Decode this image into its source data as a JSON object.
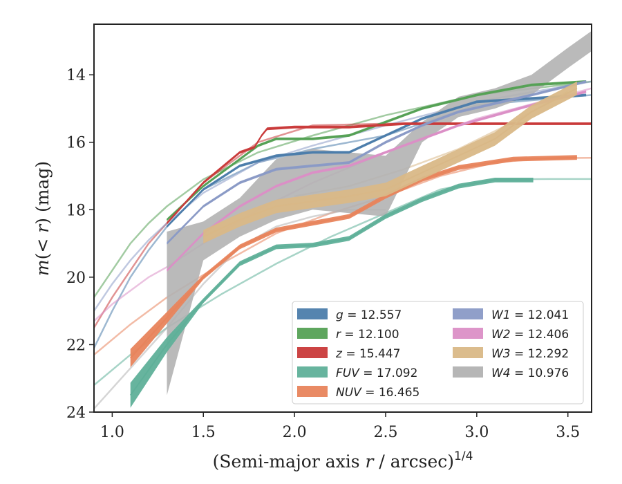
{
  "chart_data": {
    "type": "line",
    "xlabel": "(Semi-major axis r / arcsec)^{1/4}",
    "xlabel_parts": {
      "main": "(Semi-major axis ",
      "var": "r",
      "rest": " / arcsec)",
      "sup": "1/4"
    },
    "ylabel": "m(< r) (mag)",
    "ylabel_parts": {
      "var": "m",
      "mid": "(< ",
      "var2": "r",
      "rest": ") (mag)"
    },
    "xlim": [
      0.9,
      3.63
    ],
    "ylim": [
      24,
      12.5
    ],
    "y_inverted": true,
    "x_ticks": [
      1.0,
      1.5,
      2.0,
      2.5,
      3.0,
      3.5
    ],
    "x_tick_labels": [
      "1.0",
      "1.5",
      "2.0",
      "2.5",
      "3.0",
      "3.5"
    ],
    "y_ticks": [
      14,
      16,
      18,
      20,
      22,
      24
    ],
    "y_tick_labels": [
      "14",
      "16",
      "18",
      "20",
      "22",
      "24"
    ],
    "grid": false,
    "legend_position": "lower-right",
    "series": [
      {
        "name": "g",
        "value": "12.557",
        "color": "#4c7dab",
        "kind": "band",
        "x": [
          1.3,
          1.5,
          1.7,
          1.9,
          2.1,
          2.3,
          2.5,
          2.7,
          3.0,
          3.3,
          3.6
        ],
        "y": [
          18.5,
          17.4,
          16.7,
          16.4,
          16.3,
          16.3,
          15.8,
          15.3,
          14.8,
          14.7,
          14.6
        ],
        "ext_x": [
          0.9,
          1.0,
          1.1,
          1.2,
          1.3,
          1.5,
          1.8,
          2.1,
          2.5,
          3.0,
          3.63
        ],
        "ext_y": [
          22.1,
          21.0,
          20.0,
          19.2,
          18.5,
          17.4,
          16.6,
          16.2,
          15.8,
          14.9,
          14.6
        ]
      },
      {
        "name": "r",
        "value": "12.100",
        "color": "#55a155",
        "kind": "band",
        "x": [
          1.3,
          1.5,
          1.7,
          1.8,
          1.9,
          2.1,
          2.3,
          2.5,
          2.7,
          3.0,
          3.3,
          3.6
        ],
        "y": [
          18.3,
          17.3,
          16.5,
          16.1,
          15.9,
          15.9,
          15.8,
          15.4,
          15.0,
          14.6,
          14.3,
          14.2
        ],
        "ext_x": [
          0.9,
          1.0,
          1.1,
          1.2,
          1.3,
          1.5,
          1.8,
          2.1,
          2.5,
          3.0,
          3.63
        ],
        "ext_y": [
          20.6,
          19.8,
          19.0,
          18.4,
          17.9,
          17.1,
          16.3,
          15.8,
          15.2,
          14.6,
          14.2
        ]
      },
      {
        "name": "z",
        "value": "15.447",
        "color": "#c93a3a",
        "kind": "band",
        "x": [
          1.3,
          1.5,
          1.7,
          1.78,
          1.82,
          1.85,
          2.0,
          2.3,
          2.6,
          2.9,
          3.3,
          3.63
        ],
        "y": [
          18.4,
          17.2,
          16.3,
          16.15,
          15.8,
          15.6,
          15.55,
          15.55,
          15.45,
          15.45,
          15.45,
          15.45
        ],
        "ext_x": [
          0.9,
          1.0,
          1.1,
          1.2,
          1.3,
          1.5,
          1.8,
          2.1,
          2.5,
          3.0,
          3.63
        ],
        "ext_y": [
          21.5,
          20.6,
          19.8,
          19.0,
          18.4,
          17.2,
          16.0,
          15.5,
          15.45,
          15.45,
          15.45
        ]
      },
      {
        "name": "FUV",
        "value": "17.092",
        "color": "#5fb099",
        "kind": "band",
        "x": [
          1.1,
          1.3,
          1.5,
          1.7,
          1.9,
          2.1,
          2.3,
          2.5,
          2.7,
          2.9,
          3.1,
          3.31
        ],
        "y": [
          23.5,
          22.0,
          20.7,
          19.6,
          19.1,
          19.05,
          18.85,
          18.2,
          17.7,
          17.3,
          17.12,
          17.12
        ],
        "ext_x": [
          0.9,
          1.1,
          1.3,
          1.6,
          1.9,
          2.2,
          2.5,
          2.8,
          3.1,
          3.4,
          3.63
        ],
        "ext_y": [
          23.2,
          22.3,
          21.5,
          20.5,
          19.6,
          18.8,
          18.1,
          17.4,
          17.1,
          17.09,
          17.09
        ]
      },
      {
        "name": "NUV",
        "value": "16.465",
        "color": "#e8845c",
        "kind": "band",
        "x": [
          1.1,
          1.3,
          1.5,
          1.7,
          1.9,
          2.1,
          2.3,
          2.5,
          2.7,
          2.9,
          3.2,
          3.55
        ],
        "y": [
          22.4,
          21.2,
          20.0,
          19.1,
          18.6,
          18.4,
          18.2,
          17.6,
          17.1,
          16.75,
          16.5,
          16.45
        ],
        "ext_x": [
          0.9,
          1.1,
          1.3,
          1.6,
          1.9,
          2.2,
          2.5,
          2.8,
          3.1,
          3.4,
          3.63
        ],
        "ext_y": [
          22.3,
          21.4,
          20.6,
          19.6,
          18.7,
          18.1,
          17.6,
          17.0,
          16.6,
          16.47,
          16.46
        ]
      },
      {
        "name": "W1",
        "value": "12.041",
        "color": "#8a9ac6",
        "kind": "band",
        "x": [
          1.3,
          1.5,
          1.7,
          1.9,
          2.1,
          2.3,
          2.5,
          2.7,
          2.9,
          3.1,
          3.3,
          3.6
        ],
        "y": [
          19.0,
          17.9,
          17.2,
          16.8,
          16.7,
          16.6,
          16.0,
          15.5,
          15.1,
          14.85,
          14.6,
          14.2
        ],
        "ext_x": [
          0.9,
          1.0,
          1.1,
          1.2,
          1.3,
          1.5,
          1.8,
          2.1,
          2.5,
          3.0,
          3.63
        ],
        "ext_y": [
          21.0,
          20.2,
          19.5,
          18.9,
          18.4,
          17.5,
          16.6,
          16.1,
          15.5,
          14.8,
          14.2
        ]
      },
      {
        "name": "W2",
        "value": "12.406",
        "color": "#db8fc6",
        "kind": "band",
        "x": [
          1.3,
          1.5,
          1.7,
          1.9,
          2.1,
          2.3,
          2.5,
          2.7,
          2.9,
          3.1,
          3.3,
          3.6
        ],
        "y": [
          19.8,
          18.7,
          17.9,
          17.3,
          16.9,
          16.7,
          16.3,
          15.9,
          15.5,
          15.2,
          14.9,
          14.5
        ],
        "ext_x": [
          0.9,
          1.0,
          1.1,
          1.2,
          1.3,
          1.5,
          1.8,
          2.1,
          2.5,
          3.0,
          3.63
        ],
        "ext_y": [
          21.3,
          20.8,
          20.4,
          20.0,
          19.7,
          19.0,
          18.0,
          17.2,
          16.3,
          15.3,
          14.4
        ]
      },
      {
        "name": "W3",
        "value": "12.292",
        "color": "#d9b887",
        "kind": "band",
        "x": [
          1.5,
          1.7,
          1.9,
          2.1,
          2.3,
          2.5,
          2.7,
          2.9,
          3.1,
          3.3,
          3.55
        ],
        "y": [
          18.8,
          18.3,
          17.9,
          17.75,
          17.6,
          17.4,
          16.9,
          16.4,
          15.9,
          15.1,
          14.4
        ],
        "ext_x": [
          2.0,
          2.3,
          2.6,
          2.9,
          3.2,
          3.5
        ],
        "ext_y": [
          17.6,
          17.3,
          16.8,
          16.2,
          15.4,
          14.5
        ]
      },
      {
        "name": "W4",
        "value": "10.976",
        "color": "#b2b2b2",
        "kind": "wide",
        "x": [
          1.3,
          1.5,
          1.7,
          1.9,
          2.1,
          2.3,
          2.5,
          2.7,
          2.9,
          3.1,
          3.3,
          3.5,
          3.63
        ],
        "y": [
          18.9,
          18.6,
          17.9,
          17.4,
          17.1,
          17.2,
          17.3,
          15.7,
          14.95,
          14.7,
          14.3,
          13.5,
          13.0
        ],
        "ext_x": [
          0.9,
          1.1,
          1.3,
          1.5,
          1.7,
          1.9,
          2.1,
          2.3,
          2.5
        ],
        "ext_y": [
          23.9,
          22.7,
          21.5,
          20.2,
          19.1,
          18.5,
          18.2,
          18.0,
          18.0
        ]
      }
    ]
  }
}
